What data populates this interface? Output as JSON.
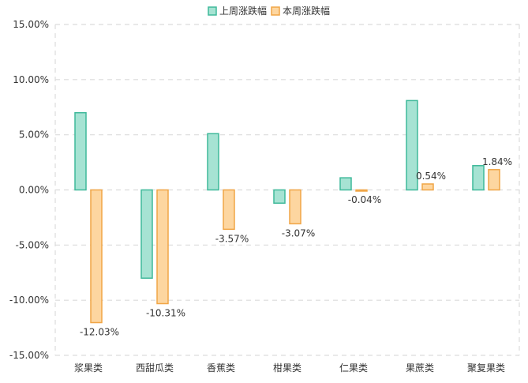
{
  "chart_data": {
    "type": "bar",
    "categories": [
      "浆果类",
      "西甜瓜类",
      "香蕉类",
      "柑果类",
      "仁果类",
      "果蔗类",
      "聚复果类"
    ],
    "series": [
      {
        "name": "上周涨跌幅",
        "values": [
          7.0,
          -8.0,
          5.1,
          -1.2,
          1.1,
          8.1,
          2.2
        ],
        "fill": "#a6e3d3",
        "stroke": "#3fb99a"
      },
      {
        "name": "本周涨跌幅",
        "values": [
          -12.03,
          -10.31,
          -3.57,
          -3.07,
          -0.04,
          0.54,
          1.84
        ],
        "data_labels": [
          "-12.03%",
          "-10.31%",
          "-3.57%",
          "-3.07%",
          "-0.04%",
          "0.54%",
          "1.84%"
        ],
        "fill": "#fdd6a0",
        "stroke": "#f0a546"
      }
    ],
    "y_ticks": [
      "15.00%",
      "10.00%",
      "5.00%",
      "0.00%",
      "-5.00%",
      "-10.00%",
      "-15.00%"
    ],
    "ylim": [
      -15,
      15
    ],
    "legend_position": "top-center",
    "grid": true
  }
}
